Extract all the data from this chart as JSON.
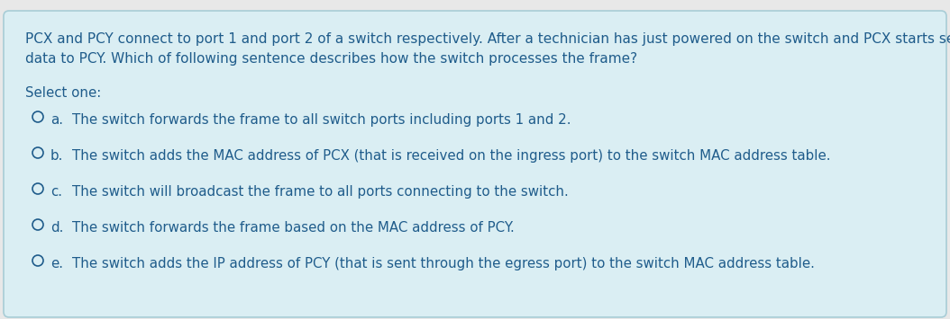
{
  "bg_color": "#daeef3",
  "outer_bg_color": "#e8e8e8",
  "border_color": "#a8cdd6",
  "text_color": "#1f5c8b",
  "question_text_line1": "PCX and PCY connect to port 1 and port 2 of a switch respectively. After a technician has just powered on the switch and PCX starts sending",
  "question_text_line2": "data to PCY. Which of following sentence describes how the switch processes the frame?",
  "select_one": "Select one:",
  "options": [
    {
      "letter": "a.",
      "text": "The switch forwards the frame to all switch ports including ports 1 and 2."
    },
    {
      "letter": "b.",
      "text": "The switch adds the MAC address of PCX (that is received on the ingress port) to the switch MAC address table."
    },
    {
      "letter": "c.",
      "text": "The switch will broadcast the frame to all ports connecting to the switch."
    },
    {
      "letter": "d.",
      "text": "The switch forwards the frame based on the MAC address of PCY."
    },
    {
      "letter": "e.",
      "text": "The switch adds the IP address of PCY (that is sent through the egress port) to the switch MAC address table."
    }
  ],
  "font_size_question": 11.0,
  "font_size_options": 10.8,
  "font_size_select": 10.8,
  "fig_width": 10.54,
  "fig_height": 3.55,
  "dpi": 100
}
